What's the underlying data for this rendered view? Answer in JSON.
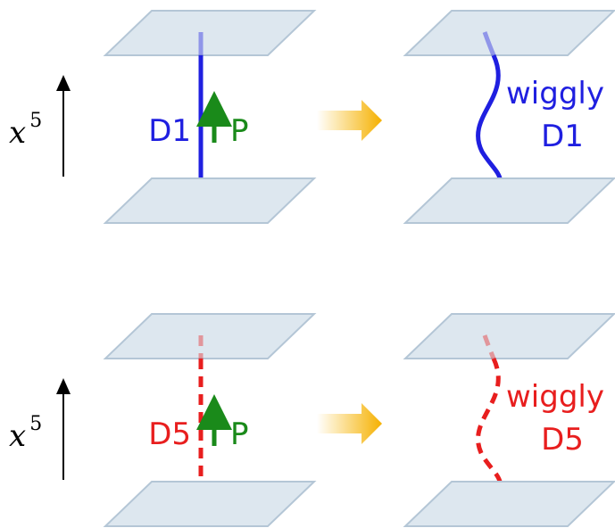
{
  "rows": [
    {
      "axis_label": "x",
      "axis_exponent": "5",
      "brane": "D1",
      "momentum": "P",
      "result_line1": "wiggly",
      "result_line2": "D1"
    },
    {
      "axis_label": "x",
      "axis_exponent": "5",
      "brane": "D5",
      "momentum": "P",
      "result_line1": "wiggly",
      "result_line2": "D5"
    }
  ]
}
